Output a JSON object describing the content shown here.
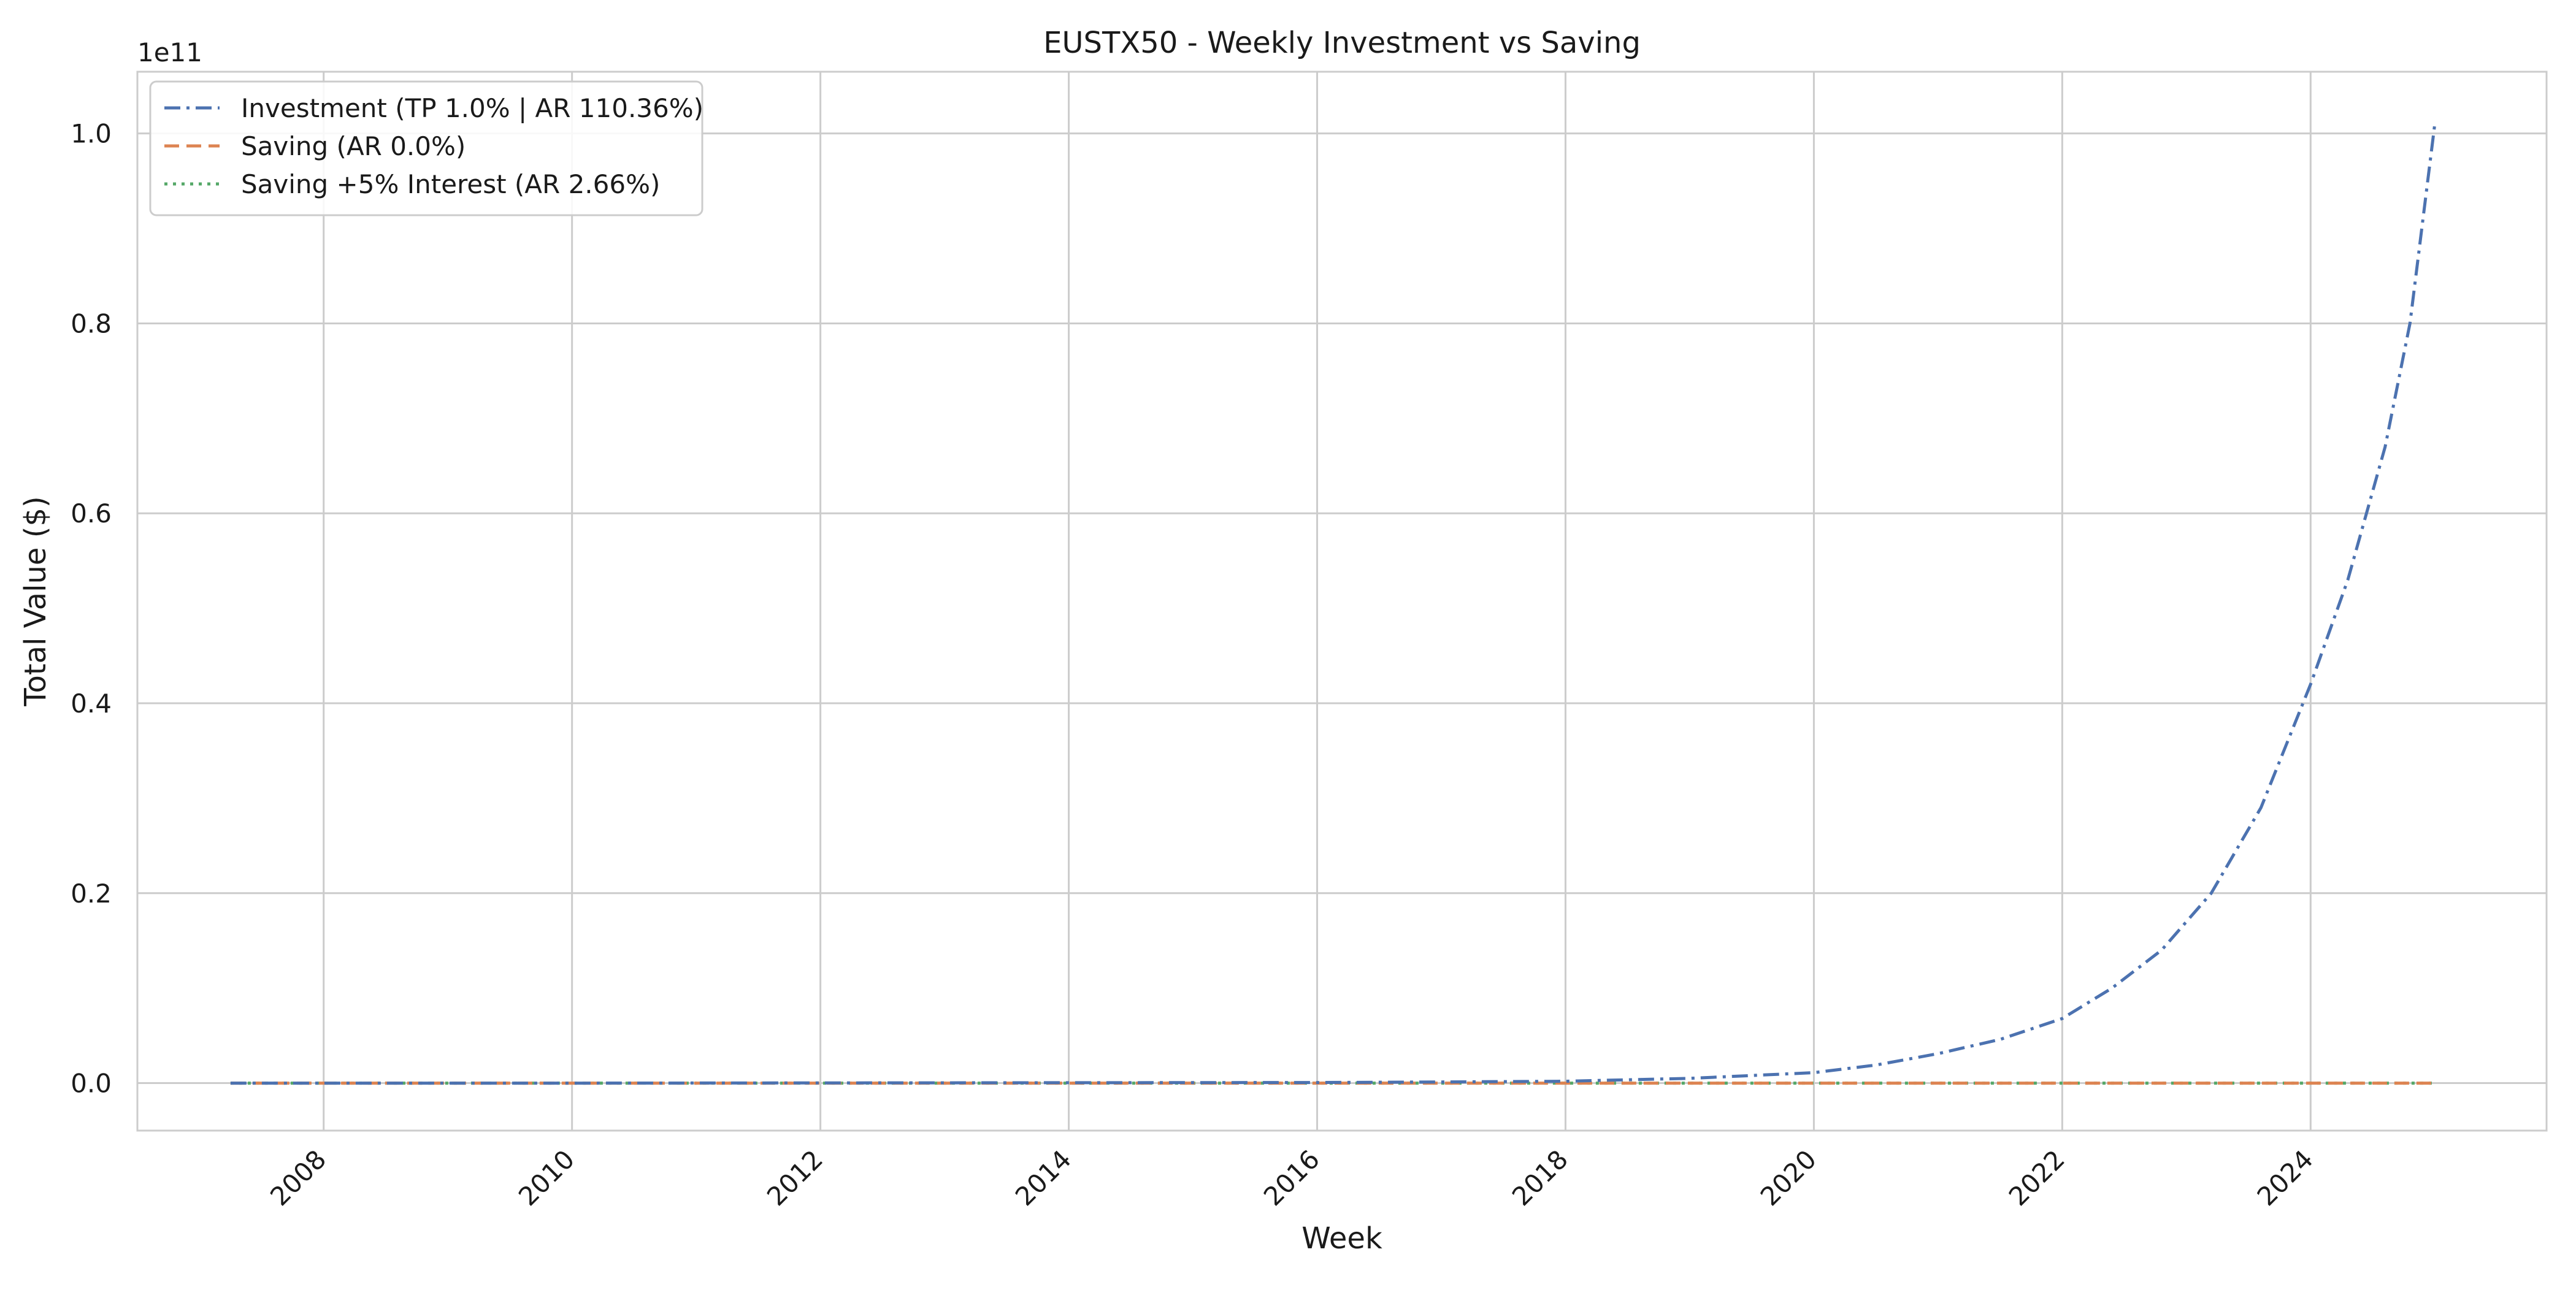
{
  "chart_data": {
    "type": "line",
    "title": "EUSTX50 - Weekly Investment vs Saving",
    "xlabel": "Week",
    "ylabel": "Total Value ($)",
    "y_offset_label": "1e11",
    "x_unit": "year",
    "xlim": [
      2006.5,
      2025.9
    ],
    "ylim": [
      -0.05,
      1.065
    ],
    "x_ticks": [
      2008,
      2010,
      2012,
      2014,
      2016,
      2018,
      2020,
      2022,
      2024
    ],
    "x_tick_labels": [
      "2008",
      "2010",
      "2012",
      "2014",
      "2016",
      "2018",
      "2020",
      "2022",
      "2024"
    ],
    "y_ticks": [
      0.0,
      0.2,
      0.4,
      0.6,
      0.8,
      1.0
    ],
    "y_tick_labels": [
      "0.0",
      "0.2",
      "0.4",
      "0.6",
      "0.8",
      "1.0"
    ],
    "grid": true,
    "legend_position": "top-left",
    "series": [
      {
        "name": "Investment (TP 1.0% | AR 110.36%)",
        "color": "#4c72b0",
        "dash": "dashdot",
        "x": [
          2007.25,
          2010,
          2014,
          2016,
          2017,
          2018,
          2019,
          2020,
          2020.5,
          2021,
          2021.5,
          2022,
          2022.4,
          2022.8,
          2023.2,
          2023.6,
          2024,
          2024.3,
          2024.6,
          2024.8,
          2025.0
        ],
        "y": [
          0.0,
          0.0,
          0.0004,
          0.0006,
          0.0012,
          0.002,
          0.005,
          0.011,
          0.019,
          0.031,
          0.046,
          0.068,
          0.1,
          0.14,
          0.2,
          0.29,
          0.42,
          0.53,
          0.67,
          0.8,
          1.01
        ]
      },
      {
        "name": "Saving (AR 0.0%)",
        "color": "#dd8452",
        "dash": "dashed",
        "x": [
          2007.25,
          2025.0
        ],
        "y": [
          0.0,
          0.0
        ]
      },
      {
        "name": "Saving +5% Interest (AR 2.66%)",
        "color": "#55a868",
        "dash": "dotted",
        "x": [
          2007.25,
          2025.0
        ],
        "y": [
          0.0,
          0.0
        ]
      }
    ]
  }
}
